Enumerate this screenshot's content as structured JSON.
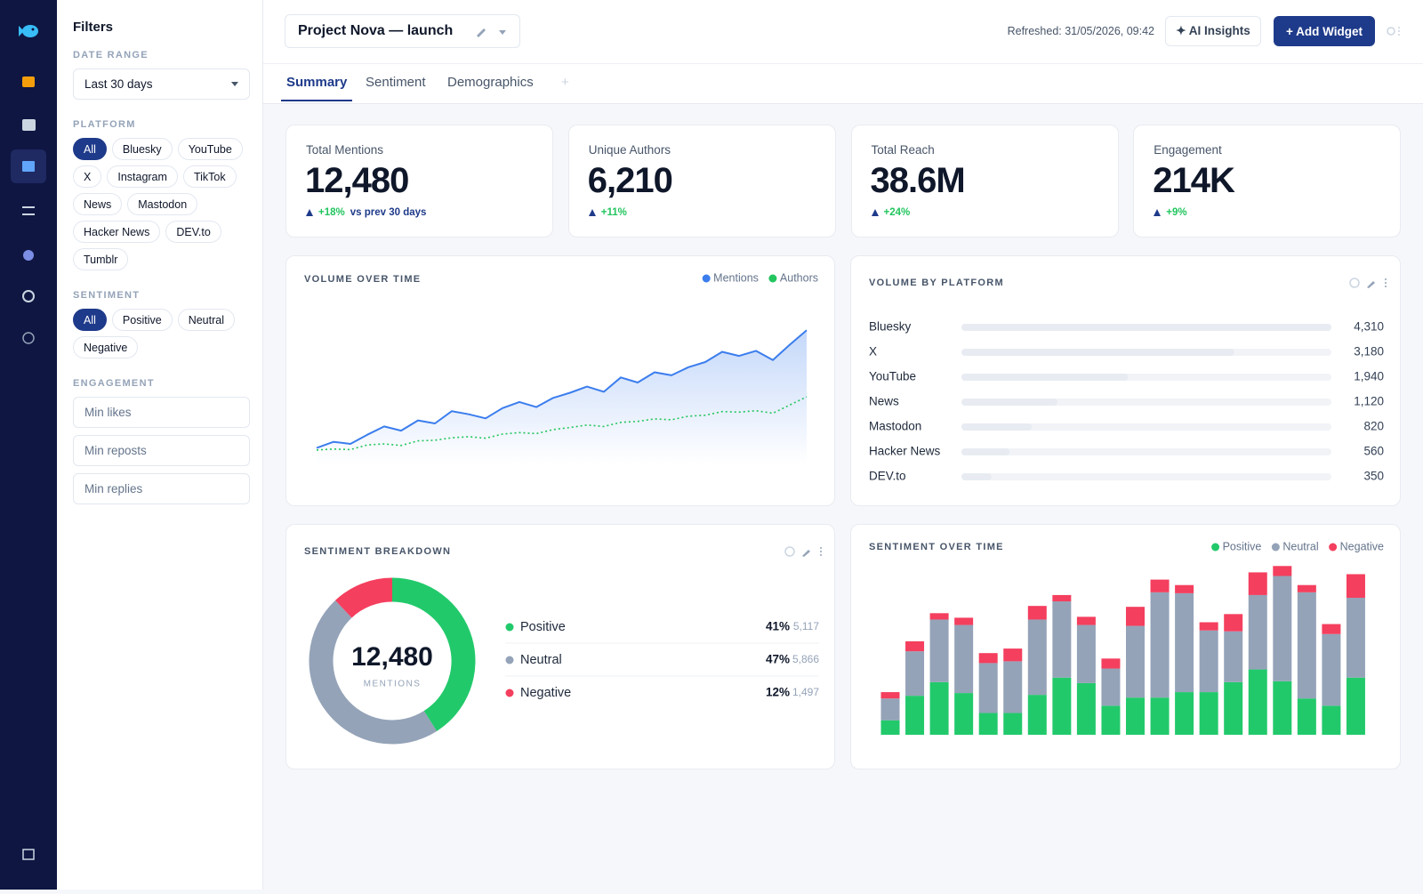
{
  "filters": {
    "title": "Filters",
    "date_range": {
      "label": "DATE RANGE",
      "value": "Last 30 days"
    },
    "platform": {
      "label": "PLATFORM",
      "options": [
        "All",
        "Bluesky",
        "YouTube",
        "X",
        "Instagram",
        "TikTok",
        "News",
        "Mastodon",
        "Hacker News",
        "DEV.to",
        "Tumblr"
      ],
      "selected": 0
    },
    "sentiment": {
      "label": "SENTIMENT",
      "options": [
        "All",
        "Positive",
        "Neutral",
        "Negative"
      ],
      "selected": 0
    },
    "engagement": {
      "label": "ENGAGEMENT",
      "inputs": [
        "Min likes",
        "Min reposts",
        "Min replies"
      ]
    }
  },
  "header": {
    "project": "Project Nova — launch",
    "refreshed": "Refreshed: 31/05/2026, 09:42",
    "ai_button": "✦ AI Insights",
    "add_button": "+ Add Widget"
  },
  "tabs": {
    "items": [
      "Summary",
      "Sentiment",
      "Demographics"
    ],
    "active": 0,
    "add": "+"
  },
  "kpis": [
    {
      "label": "Total Mentions",
      "value": "12,480",
      "delta": "+18%",
      "note": "vs prev 30 days"
    },
    {
      "label": "Unique Authors",
      "value": "6,210",
      "delta": "+11%"
    },
    {
      "label": "Total Reach",
      "value": "38.6M",
      "delta": "+24%"
    },
    {
      "label": "Engagement",
      "value": "214K",
      "delta": "+9%"
    }
  ],
  "chart_data": [
    {
      "type": "line",
      "title": "VOLUME OVER TIME",
      "ylim": [
        0,
        800
      ],
      "series": [
        {
          "name": "Mentions",
          "color": "#3b7ded",
          "fill": true,
          "dash": false,
          "values": [
            80,
            110,
            100,
            145,
            185,
            165,
            215,
            200,
            260,
            245,
            225,
            275,
            305,
            280,
            325,
            350,
            380,
            355,
            425,
            400,
            450,
            435,
            475,
            500,
            550,
            530,
            555,
            510,
            585,
            655
          ]
        },
        {
          "name": "Authors",
          "color": "#22c55e",
          "fill": false,
          "dash": true,
          "values": [
            70,
            75,
            72,
            95,
            100,
            92,
            115,
            118,
            130,
            135,
            128,
            148,
            155,
            150,
            170,
            180,
            192,
            185,
            205,
            210,
            222,
            218,
            235,
            240,
            258,
            255,
            262,
            250,
            290,
            330
          ]
        }
      ]
    },
    {
      "type": "hbar",
      "title": "VOLUME BY PLATFORM",
      "color": "#e8ecf2",
      "categories": [
        "Bluesky",
        "X",
        "YouTube",
        "News",
        "Mastodon",
        "Hacker News",
        "DEV.to"
      ],
      "values": [
        4310,
        3180,
        1940,
        1120,
        820,
        560,
        350
      ],
      "value_labels": [
        "4,310",
        "3,180",
        "1,940",
        "1,120",
        "820",
        "560",
        "350"
      ]
    },
    {
      "type": "donut",
      "title": "SENTIMENT BREAKDOWN",
      "categories": [
        "Positive",
        "Neutral",
        "Negative"
      ],
      "colors": [
        "#22c96b",
        "#94a3b8",
        "#f43f5e"
      ],
      "values": [
        41,
        47,
        12
      ],
      "value_labels": [
        "41%",
        "47%",
        "12%"
      ],
      "count_labels": [
        "5,117",
        "5,866",
        "1,497"
      ],
      "center_value": "12,480",
      "center_label": "MENTIONS"
    },
    {
      "type": "stacked_bar",
      "title": "SENTIMENT OVER TIME",
      "ylim": [
        0,
        200
      ],
      "series": [
        {
          "name": "Positive",
          "color": "#22c96b",
          "values": [
            16,
            43,
            58,
            46,
            24,
            24,
            44,
            63,
            57,
            32,
            41,
            41,
            47,
            47,
            58,
            72,
            59,
            40,
            32,
            63
          ]
        },
        {
          "name": "Neutral",
          "color": "#94a3b8",
          "values": [
            24,
            49,
            69,
            75,
            55,
            57,
            83,
            84,
            64,
            41,
            79,
            116,
            109,
            68,
            56,
            82,
            116,
            117,
            79,
            88
          ]
        },
        {
          "name": "Negative",
          "color": "#f43f5e",
          "values": [
            7,
            11,
            7,
            8,
            11,
            14,
            15,
            7,
            9,
            11,
            21,
            14,
            9,
            9,
            19,
            25,
            11,
            8,
            11,
            26
          ]
        }
      ]
    }
  ]
}
